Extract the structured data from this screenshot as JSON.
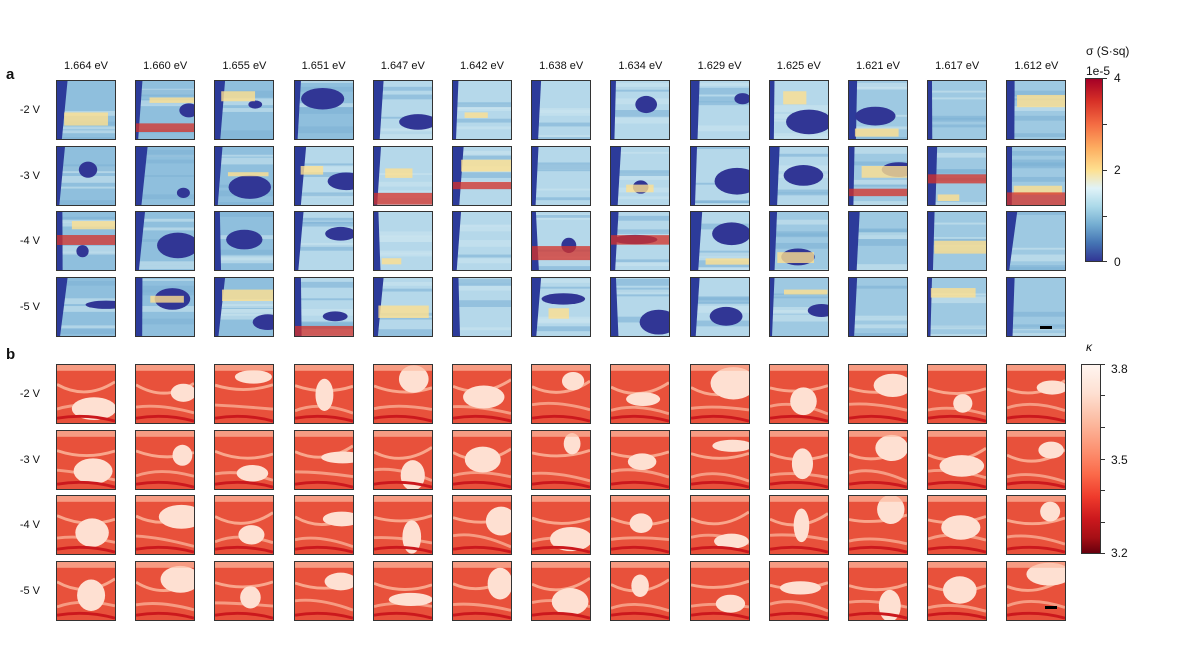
{
  "figure": {
    "panels": [
      {
        "letter": "a",
        "columns": [
          "1.664 eV",
          "1.660 eV",
          "1.655 eV",
          "1.651 eV",
          "1.647 eV",
          "1.642 eV",
          "1.638 eV",
          "1.634 eV",
          "1.629 eV",
          "1.625 eV",
          "1.621 eV",
          "1.617 eV",
          "1.612 eV"
        ],
        "rows": [
          "-2 V",
          "-3 V",
          "-4 V",
          "-5 V"
        ],
        "colorbar": {
          "title": "σ (S·sq)",
          "exponent": "1e-5",
          "ticks": [
            "4",
            "2",
            "0"
          ],
          "colormap": "RdYlBu_r",
          "colors": [
            "#a50026",
            "#f46d43",
            "#fee090",
            "#e0f3f8",
            "#74add1",
            "#313695"
          ]
        }
      },
      {
        "letter": "b",
        "columns": [
          "1.664 eV",
          "1.660 eV",
          "1.655 eV",
          "1.651 eV",
          "1.647 eV",
          "1.642 eV",
          "1.638 eV",
          "1.634 eV",
          "1.629 eV",
          "1.625 eV",
          "1.621 eV",
          "1.617 eV",
          "1.612 eV"
        ],
        "rows": [
          "-2 V",
          "-3 V",
          "-4 V",
          "-5 V"
        ],
        "colorbar": {
          "title": "κ",
          "ticks": [
            "3.8",
            "3.5",
            "3.2"
          ],
          "colormap": "Reds_r",
          "colors": [
            "#67000d",
            "#cb181d",
            "#ef3b2c",
            "#fc9272",
            "#fee0d2",
            "#fff5f0"
          ]
        }
      }
    ]
  },
  "chart_data": [
    {
      "type": "heatmap",
      "panel": "a",
      "x": [
        "1.664 eV",
        "1.660 eV",
        "1.655 eV",
        "1.651 eV",
        "1.647 eV",
        "1.642 eV",
        "1.638 eV",
        "1.634 eV",
        "1.629 eV",
        "1.625 eV",
        "1.621 eV",
        "1.617 eV",
        "1.612 eV"
      ],
      "y": [
        "-2 V",
        "-3 V",
        "-4 V",
        "-5 V"
      ],
      "colorbar_label": "σ (S·sq)",
      "colorbar_range": [
        0,
        4
      ],
      "colorbar_ticks": [
        0,
        2,
        4
      ],
      "colorbar_exponent": "1e-5"
    },
    {
      "type": "heatmap",
      "panel": "b",
      "x": [
        "1.664 eV",
        "1.660 eV",
        "1.655 eV",
        "1.651 eV",
        "1.647 eV",
        "1.642 eV",
        "1.638 eV",
        "1.634 eV",
        "1.629 eV",
        "1.625 eV",
        "1.621 eV",
        "1.617 eV",
        "1.612 eV"
      ],
      "y": [
        "-2 V",
        "-3 V",
        "-4 V",
        "-5 V"
      ],
      "colorbar_label": "κ",
      "colorbar_range": [
        3.2,
        3.8
      ],
      "colorbar_ticks": [
        3.2,
        3.5,
        3.8
      ]
    }
  ]
}
